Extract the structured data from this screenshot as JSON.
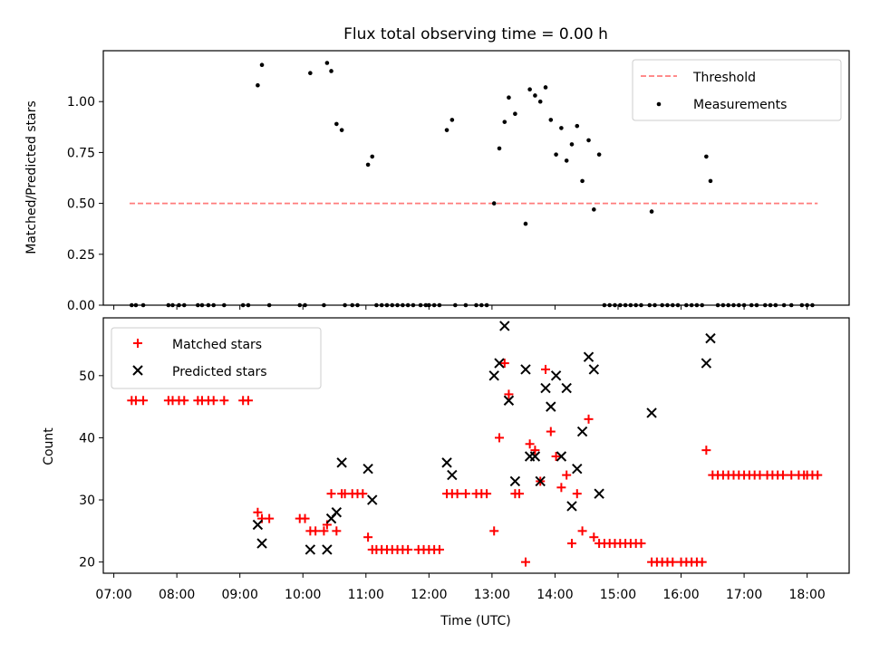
{
  "figure_title": "Flux total observing time = 0.00 h",
  "colors": {
    "threshold": "#ff7b7b",
    "matched": "#ff0000",
    "predicted": "#000000",
    "measurement": "#000000"
  },
  "chart_data": [
    {
      "type": "scatter",
      "title": "Flux total observing time = 0.00 h",
      "xlabel": "",
      "ylabel": "Matched/Predicted stars",
      "xlim": [
        "06:50",
        "18:40"
      ],
      "ylim": [
        0,
        1.25
      ],
      "yticks": [
        "0.00",
        "0.25",
        "0.50",
        "0.75",
        "1.00"
      ],
      "grid": false,
      "legend": {
        "position": "upper-right",
        "entries": [
          "Threshold",
          "Measurements"
        ]
      },
      "threshold": {
        "name": "Threshold",
        "value": 0.5,
        "x_range": [
          "07:15",
          "18:10"
        ],
        "style": "dashed"
      },
      "series": [
        {
          "name": "Measurements",
          "points": [
            [
              "07:17",
              0
            ],
            [
              "07:21",
              0
            ],
            [
              "07:28",
              0
            ],
            [
              "07:52",
              0
            ],
            [
              "07:56",
              0
            ],
            [
              "08:02",
              0
            ],
            [
              "08:07",
              0
            ],
            [
              "08:20",
              0
            ],
            [
              "08:24",
              0
            ],
            [
              "08:30",
              0
            ],
            [
              "08:35",
              0
            ],
            [
              "08:45",
              0
            ],
            [
              "09:03",
              0
            ],
            [
              "09:08",
              0
            ],
            [
              "09:28",
              0
            ],
            [
              "09:17",
              1.08
            ],
            [
              "09:21",
              1.18
            ],
            [
              "09:57",
              0
            ],
            [
              "10:02",
              0
            ],
            [
              "10:07",
              1.14
            ],
            [
              "10:20",
              0
            ],
            [
              "10:23",
              1.19
            ],
            [
              "10:27",
              1.15
            ],
            [
              "10:32",
              0.89
            ],
            [
              "10:37",
              0.86
            ],
            [
              "10:40",
              0
            ],
            [
              "10:47",
              0
            ],
            [
              "10:52",
              0
            ],
            [
              "11:02",
              0.69
            ],
            [
              "11:06",
              0.73
            ],
            [
              "11:10",
              0
            ],
            [
              "11:15",
              0
            ],
            [
              "11:20",
              0
            ],
            [
              "11:25",
              0
            ],
            [
              "11:30",
              0
            ],
            [
              "11:35",
              0
            ],
            [
              "11:40",
              0
            ],
            [
              "11:45",
              0
            ],
            [
              "11:52",
              0
            ],
            [
              "11:57",
              0
            ],
            [
              "12:00",
              0
            ],
            [
              "12:05",
              0
            ],
            [
              "12:10",
              0
            ],
            [
              "12:17",
              0.86
            ],
            [
              "12:22",
              0.91
            ],
            [
              "12:25",
              0
            ],
            [
              "12:35",
              0
            ],
            [
              "12:45",
              0
            ],
            [
              "12:50",
              0
            ],
            [
              "12:55",
              0
            ],
            [
              "13:02",
              0.5
            ],
            [
              "13:07",
              0.77
            ],
            [
              "13:12",
              0.9
            ],
            [
              "13:16",
              1.02
            ],
            [
              "13:22",
              0.94
            ],
            [
              "13:32",
              0.4
            ],
            [
              "13:36",
              1.06
            ],
            [
              "13:41",
              1.03
            ],
            [
              "13:46",
              1.0
            ],
            [
              "13:51",
              1.07
            ],
            [
              "13:56",
              0.91
            ],
            [
              "14:01",
              0.74
            ],
            [
              "14:06",
              0.87
            ],
            [
              "14:11",
              0.71
            ],
            [
              "14:16",
              0.79
            ],
            [
              "14:21",
              0.88
            ],
            [
              "14:26",
              0.61
            ],
            [
              "14:32",
              0.81
            ],
            [
              "14:37",
              0.47
            ],
            [
              "14:42",
              0.74
            ],
            [
              "14:47",
              0
            ],
            [
              "14:52",
              0
            ],
            [
              "14:57",
              0
            ],
            [
              "15:02",
              0
            ],
            [
              "15:07",
              0
            ],
            [
              "15:12",
              0
            ],
            [
              "15:17",
              0
            ],
            [
              "15:22",
              0
            ],
            [
              "15:30",
              0
            ],
            [
              "15:35",
              0
            ],
            [
              "15:42",
              0
            ],
            [
              "15:47",
              0
            ],
            [
              "15:52",
              0
            ],
            [
              "15:57",
              0
            ],
            [
              "16:05",
              0
            ],
            [
              "16:10",
              0
            ],
            [
              "16:15",
              0
            ],
            [
              "16:20",
              0
            ],
            [
              "15:32",
              0.46
            ],
            [
              "16:24",
              0.73
            ],
            [
              "16:28",
              0.61
            ],
            [
              "16:35",
              0
            ],
            [
              "16:40",
              0
            ],
            [
              "16:45",
              0
            ],
            [
              "16:50",
              0
            ],
            [
              "16:55",
              0
            ],
            [
              "17:00",
              0
            ],
            [
              "17:07",
              0
            ],
            [
              "17:12",
              0
            ],
            [
              "17:20",
              0
            ],
            [
              "17:25",
              0
            ],
            [
              "17:30",
              0
            ],
            [
              "17:38",
              0
            ],
            [
              "17:45",
              0
            ],
            [
              "17:55",
              0
            ],
            [
              "18:00",
              0
            ],
            [
              "18:05",
              0
            ]
          ]
        }
      ]
    },
    {
      "type": "scatter",
      "title": "",
      "xlabel": "Time (UTC)",
      "ylabel": "Count",
      "xlim": [
        "06:50",
        "18:40"
      ],
      "ylim": [
        18.2,
        59.3
      ],
      "xticks": [
        "07:00",
        "08:00",
        "09:00",
        "10:00",
        "11:00",
        "12:00",
        "13:00",
        "14:00",
        "15:00",
        "16:00",
        "17:00",
        "18:00"
      ],
      "yticks": [
        "20",
        "30",
        "40",
        "50"
      ],
      "grid": false,
      "legend": {
        "position": "upper-left",
        "entries": [
          "Matched stars",
          "Predicted stars"
        ]
      },
      "series": [
        {
          "name": "Matched stars",
          "marker": "+",
          "points": [
            [
              "07:17",
              46
            ],
            [
              "07:21",
              46
            ],
            [
              "07:28",
              46
            ],
            [
              "07:52",
              46
            ],
            [
              "07:56",
              46
            ],
            [
              "08:02",
              46
            ],
            [
              "08:07",
              46
            ],
            [
              "08:20",
              46
            ],
            [
              "08:24",
              46
            ],
            [
              "08:30",
              46
            ],
            [
              "08:35",
              46
            ],
            [
              "08:45",
              46
            ],
            [
              "09:03",
              46
            ],
            [
              "09:08",
              46
            ],
            [
              "09:17",
              28
            ],
            [
              "09:21",
              27
            ],
            [
              "09:28",
              27
            ],
            [
              "09:57",
              27
            ],
            [
              "10:02",
              27
            ],
            [
              "10:07",
              25
            ],
            [
              "10:12",
              25
            ],
            [
              "10:20",
              25
            ],
            [
              "10:23",
              26
            ],
            [
              "10:27",
              31
            ],
            [
              "10:32",
              25
            ],
            [
              "10:37",
              31
            ],
            [
              "10:40",
              31
            ],
            [
              "10:47",
              31
            ],
            [
              "10:52",
              31
            ],
            [
              "10:57",
              31
            ],
            [
              "11:02",
              24
            ],
            [
              "11:06",
              22
            ],
            [
              "11:10",
              22
            ],
            [
              "11:15",
              22
            ],
            [
              "11:20",
              22
            ],
            [
              "11:25",
              22
            ],
            [
              "11:30",
              22
            ],
            [
              "11:35",
              22
            ],
            [
              "11:40",
              22
            ],
            [
              "11:50",
              22
            ],
            [
              "11:55",
              22
            ],
            [
              "12:00",
              22
            ],
            [
              "12:05",
              22
            ],
            [
              "12:10",
              22
            ],
            [
              "12:17",
              31
            ],
            [
              "12:22",
              31
            ],
            [
              "12:27",
              31
            ],
            [
              "12:35",
              31
            ],
            [
              "12:45",
              31
            ],
            [
              "12:50",
              31
            ],
            [
              "12:55",
              31
            ],
            [
              "13:02",
              25
            ],
            [
              "13:07",
              40
            ],
            [
              "13:12",
              52
            ],
            [
              "13:16",
              47
            ],
            [
              "13:22",
              31
            ],
            [
              "13:26",
              31
            ],
            [
              "13:32",
              20
            ],
            [
              "13:36",
              39
            ],
            [
              "13:41",
              38
            ],
            [
              "13:46",
              33
            ],
            [
              "13:51",
              51
            ],
            [
              "13:56",
              41
            ],
            [
              "14:01",
              37
            ],
            [
              "14:06",
              32
            ],
            [
              "14:11",
              34
            ],
            [
              "14:16",
              23
            ],
            [
              "14:21",
              31
            ],
            [
              "14:26",
              25
            ],
            [
              "14:32",
              43
            ],
            [
              "14:37",
              24
            ],
            [
              "14:42",
              23
            ],
            [
              "14:47",
              23
            ],
            [
              "14:52",
              23
            ],
            [
              "14:57",
              23
            ],
            [
              "15:02",
              23
            ],
            [
              "15:07",
              23
            ],
            [
              "15:12",
              23
            ],
            [
              "15:17",
              23
            ],
            [
              "15:22",
              23
            ],
            [
              "15:32",
              20
            ],
            [
              "15:37",
              20
            ],
            [
              "15:42",
              20
            ],
            [
              "15:47",
              20
            ],
            [
              "15:52",
              20
            ],
            [
              "16:00",
              20
            ],
            [
              "16:05",
              20
            ],
            [
              "16:10",
              20
            ],
            [
              "16:15",
              20
            ],
            [
              "16:20",
              20
            ],
            [
              "16:24",
              38
            ],
            [
              "16:30",
              34
            ],
            [
              "16:35",
              34
            ],
            [
              "16:40",
              34
            ],
            [
              "16:45",
              34
            ],
            [
              "16:50",
              34
            ],
            [
              "16:55",
              34
            ],
            [
              "17:00",
              34
            ],
            [
              "17:05",
              34
            ],
            [
              "17:10",
              34
            ],
            [
              "17:15",
              34
            ],
            [
              "17:22",
              34
            ],
            [
              "17:27",
              34
            ],
            [
              "17:32",
              34
            ],
            [
              "17:37",
              34
            ],
            [
              "17:45",
              34
            ],
            [
              "17:52",
              34
            ],
            [
              "17:57",
              34
            ],
            [
              "18:00",
              34
            ],
            [
              "18:05",
              34
            ],
            [
              "18:10",
              34
            ]
          ]
        },
        {
          "name": "Predicted stars",
          "marker": "x",
          "points": [
            [
              "09:17",
              26
            ],
            [
              "09:21",
              23
            ],
            [
              "10:07",
              22
            ],
            [
              "10:23",
              22
            ],
            [
              "10:27",
              27
            ],
            [
              "10:32",
              28
            ],
            [
              "10:37",
              36
            ],
            [
              "11:02",
              35
            ],
            [
              "11:06",
              30
            ],
            [
              "12:17",
              36
            ],
            [
              "12:22",
              34
            ],
            [
              "13:02",
              50
            ],
            [
              "13:07",
              52
            ],
            [
              "13:12",
              58
            ],
            [
              "13:16",
              46
            ],
            [
              "13:22",
              33
            ],
            [
              "13:32",
              51
            ],
            [
              "13:36",
              37
            ],
            [
              "13:41",
              37
            ],
            [
              "13:46",
              33
            ],
            [
              "13:51",
              48
            ],
            [
              "13:56",
              45
            ],
            [
              "14:01",
              50
            ],
            [
              "14:06",
              37
            ],
            [
              "14:11",
              48
            ],
            [
              "14:16",
              29
            ],
            [
              "14:21",
              35
            ],
            [
              "14:26",
              41
            ],
            [
              "14:32",
              53
            ],
            [
              "14:37",
              51
            ],
            [
              "14:42",
              31
            ],
            [
              "15:32",
              44
            ],
            [
              "16:24",
              52
            ],
            [
              "16:28",
              56
            ]
          ]
        }
      ]
    }
  ]
}
